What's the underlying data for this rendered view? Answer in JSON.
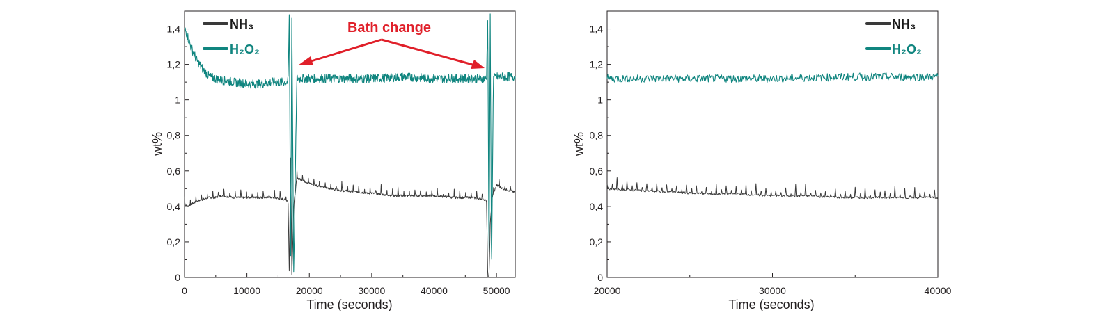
{
  "colors": {
    "nh3": "#3a3a3a",
    "h2o2": "#10857f",
    "annotation": "#e0202a",
    "axis": "#231f20"
  },
  "chart_data": [
    {
      "type": "line",
      "xlabel": "Time (seconds)",
      "ylabel": "wt%",
      "xlim": [
        0,
        53000
      ],
      "ylim": [
        0,
        1.5
      ],
      "x_ticks": [
        "0",
        "10000",
        "20000",
        "30000",
        "40000",
        "50000"
      ],
      "y_ticks": [
        "0",
        "0,2",
        "0,4",
        "0,6",
        "0,8",
        "1",
        "1,2",
        "1,4"
      ],
      "legend": {
        "position": "top-left",
        "entries": [
          "NH₃",
          "H₂O₂"
        ]
      },
      "annotation": {
        "text": "Bath change",
        "points_to_x": [
          17500,
          48500
        ]
      },
      "series": [
        {
          "name": "NH₃",
          "color": "#3a3a3a",
          "x": [
            0,
            500,
            1000,
            2000,
            3000,
            4000,
            5000,
            6000,
            8000,
            10000,
            12000,
            14000,
            16000,
            16600,
            16800,
            17000,
            17200,
            17500,
            18000,
            20000,
            22000,
            25000,
            28000,
            31000,
            34000,
            37000,
            40000,
            43000,
            46000,
            48000,
            48400,
            48600,
            48800,
            49000,
            49300,
            50000,
            51000,
            52000,
            53000
          ],
          "values": [
            0.41,
            0.4,
            0.41,
            0.43,
            0.44,
            0.45,
            0.45,
            0.46,
            0.45,
            0.45,
            0.45,
            0.45,
            0.44,
            0.43,
            0.0,
            0.75,
            0.0,
            0.4,
            0.56,
            0.53,
            0.51,
            0.49,
            0.48,
            0.47,
            0.46,
            0.46,
            0.46,
            0.45,
            0.45,
            0.44,
            0.43,
            0.0,
            0.0,
            0.3,
            0.45,
            0.52,
            0.5,
            0.49,
            0.48
          ],
          "spike_amplitude": 0.05,
          "spike_period": 900
        },
        {
          "name": "H₂O₂",
          "color": "#10857f",
          "x": [
            0,
            300,
            1000,
            2000,
            3000,
            4000,
            5000,
            6000,
            8000,
            10000,
            12000,
            14000,
            16000,
            16600,
            16800,
            17000,
            17200,
            17500,
            18000,
            20000,
            25000,
            30000,
            35000,
            40000,
            45000,
            48000,
            48400,
            48600,
            48800,
            49000,
            49200,
            49500,
            50000,
            51000,
            52000,
            53000
          ],
          "values": [
            1.4,
            1.38,
            1.3,
            1.22,
            1.17,
            1.13,
            1.12,
            1.11,
            1.1,
            1.09,
            1.09,
            1.1,
            1.1,
            1.1,
            1.5,
            0.0,
            1.5,
            0.0,
            1.12,
            1.12,
            1.12,
            1.12,
            1.13,
            1.12,
            1.12,
            1.12,
            1.12,
            1.5,
            0.0,
            1.5,
            0.0,
            1.12,
            1.13,
            1.13,
            1.13,
            1.13
          ],
          "noise_amplitude": 0.025
        }
      ]
    },
    {
      "type": "line",
      "xlabel": "Time (seconds)",
      "ylabel": "wt%",
      "xlim": [
        20000,
        40000
      ],
      "ylim": [
        0,
        1.5
      ],
      "x_ticks": [
        "20000",
        "30000",
        "40000"
      ],
      "y_ticks": [
        "0",
        "0,2",
        "0,4",
        "0,6",
        "0,8",
        "1",
        "1,2",
        "1,4"
      ],
      "legend": {
        "position": "top-right",
        "entries": [
          "NH₃",
          "H₂O₂"
        ]
      },
      "series": [
        {
          "name": "NH₃",
          "color": "#3a3a3a",
          "x": [
            20000,
            22000,
            24000,
            26000,
            28000,
            30000,
            32000,
            34000,
            36000,
            38000,
            40000
          ],
          "values": [
            0.5,
            0.49,
            0.48,
            0.47,
            0.47,
            0.46,
            0.46,
            0.45,
            0.45,
            0.45,
            0.45
          ],
          "spike_amplitude": 0.05,
          "spike_period": 300
        },
        {
          "name": "H₂O₂",
          "color": "#10857f",
          "x": [
            20000,
            25000,
            30000,
            35000,
            40000
          ],
          "values": [
            1.12,
            1.12,
            1.12,
            1.13,
            1.13
          ],
          "noise_amplitude": 0.022
        }
      ]
    }
  ]
}
